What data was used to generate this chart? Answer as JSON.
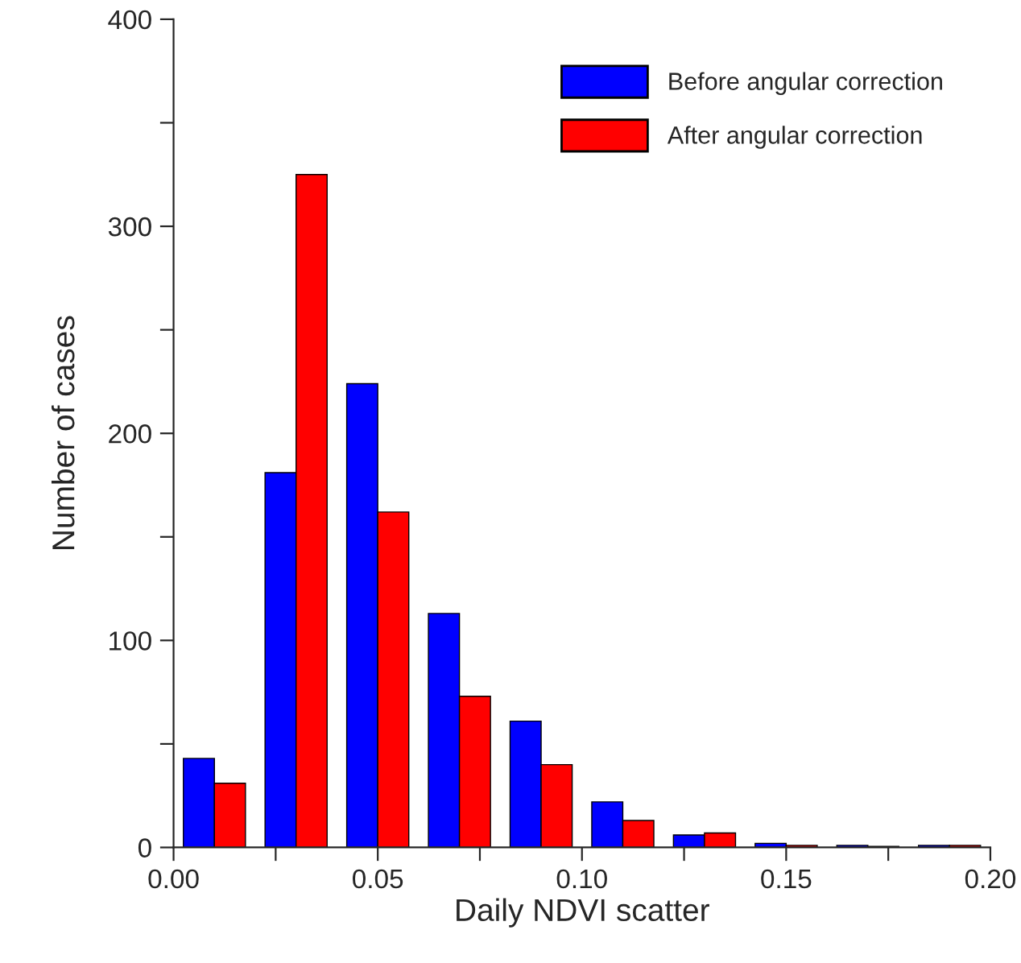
{
  "chart_data": {
    "type": "histogram",
    "xlabel": "Daily NDVI scatter",
    "ylabel": "Number of cases",
    "bins": [
      0,
      0.02,
      0.04,
      0.06,
      0.08,
      0.1,
      0.12,
      0.14,
      0.16,
      0.18,
      0.2
    ],
    "series": [
      {
        "name": "Before angular correction",
        "color": "#0000ff",
        "values": [
          43,
          181,
          224,
          113,
          61,
          22,
          6,
          2,
          1,
          1
        ]
      },
      {
        "name": "After angular correction",
        "color": "#ff0000",
        "values": [
          31,
          325,
          162,
          73,
          40,
          13,
          7,
          1,
          0.5,
          1
        ]
      }
    ],
    "xlim": [
      0,
      0.2
    ],
    "xticks": [
      {
        "value": 0,
        "label": "0.00"
      },
      {
        "value": 0.025,
        "label": null
      },
      {
        "value": 0.05,
        "label": "0.05"
      },
      {
        "value": 0.075,
        "label": null
      },
      {
        "value": 0.1,
        "label": "0.10"
      },
      {
        "value": 0.125,
        "label": null
      },
      {
        "value": 0.15,
        "label": "0.15"
      },
      {
        "value": 0.175,
        "label": null
      },
      {
        "value": 0.2,
        "label": "0.20"
      }
    ],
    "ylim": [
      0,
      400
    ],
    "yticks": [
      0,
      {
        "value": 50,
        "label": null
      },
      100,
      {
        "value": 150,
        "label": null
      },
      200,
      {
        "value": 250,
        "label": null
      },
      300,
      {
        "value": 350,
        "label": null
      },
      400
    ],
    "legend": "top right",
    "grid": false
  }
}
